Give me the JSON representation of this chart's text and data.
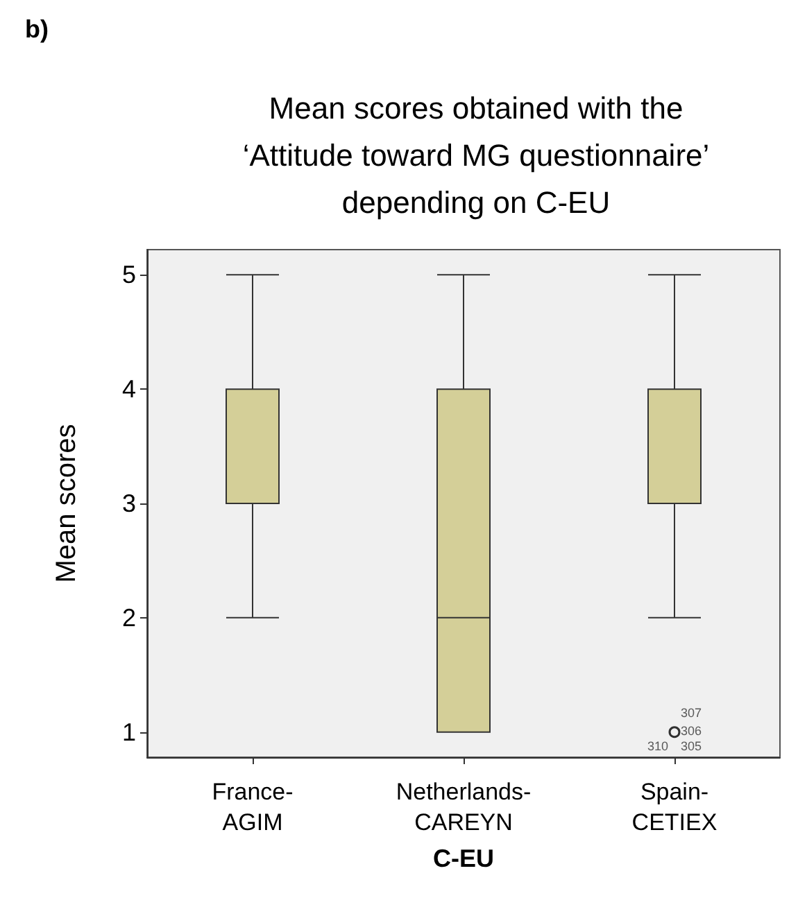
{
  "chart_data": {
    "type": "box",
    "title": "Mean scores obtained with the\n‘Attitude toward MG questionnaire’\ndepending on C-EU",
    "xlabel": "C-EU",
    "ylabel": "Mean scores",
    "categories": [
      "France-AGIM",
      "Netherlands-CAREYN",
      "Spain-CETIEX"
    ],
    "series": [
      {
        "color": "#d4cf98",
        "boxes": [
          {
            "low": 2,
            "q1": 3,
            "median": 4,
            "q3": 4,
            "high": 5
          },
          {
            "low": 1,
            "q1": 1,
            "median": 2,
            "q3": 4,
            "high": 5
          },
          {
            "low": 2,
            "q1": 3,
            "median": 4,
            "q3": 4,
            "high": 5,
            "outliers": [
              1
            ]
          }
        ]
      }
    ],
    "ylim": [
      0.78,
      5.22
    ],
    "yticks": [
      1,
      2,
      3,
      4,
      5
    ],
    "grid": false,
    "marker": "circle",
    "annotations": [
      "b)",
      "307",
      "306",
      "310",
      "305"
    ]
  }
}
